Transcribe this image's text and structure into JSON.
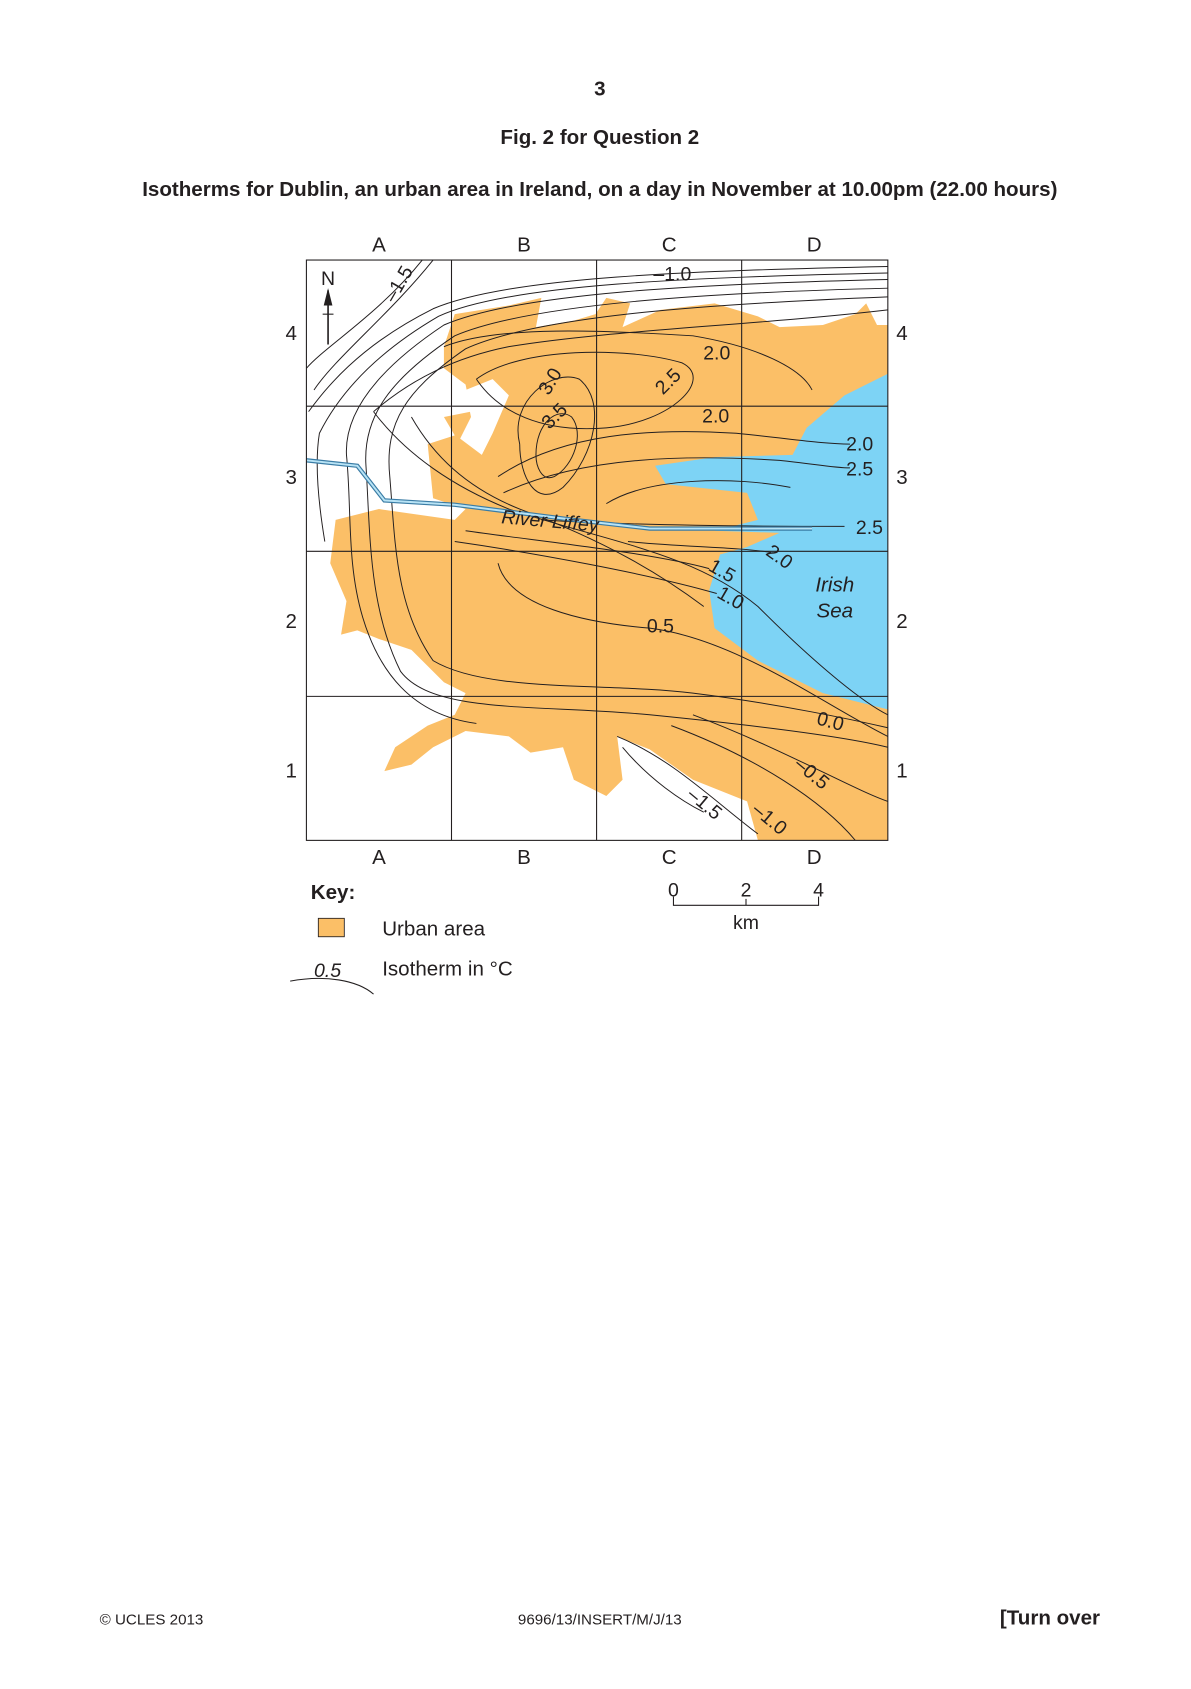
{
  "header": {
    "page_number": "3",
    "figure_title": "Fig. 2 for Question 2",
    "caption": "Isotherms for Dublin, an urban area in Ireland, on a day in November at 10.00pm (22.00 hours)"
  },
  "map": {
    "column_labels": [
      "A",
      "B",
      "C",
      "D"
    ],
    "row_labels": [
      "4",
      "3",
      "2",
      "1"
    ],
    "north": "N",
    "isotherm_labels": [
      "–1.5",
      "–1.0",
      "2.0",
      "3.0",
      "2.5",
      "3.5",
      "2.0",
      "2.0",
      "2.5",
      "2.5",
      "2.0",
      "1.5",
      "1.0",
      "0.5",
      "0.0",
      "–0.5",
      "–1.5",
      "–1.0"
    ],
    "river": "River Liffey",
    "sea": [
      "Irish",
      "Sea"
    ]
  },
  "scale": {
    "ticks": [
      "0",
      "2",
      "4"
    ],
    "unit": "km"
  },
  "key": {
    "title": "Key:",
    "items": [
      "Urban area",
      "Isotherm in °C"
    ],
    "sample_label": "0.5"
  },
  "footer": {
    "copyright": "© UCLES 2013",
    "code": "9696/13/INSERT/M/J/13",
    "turn_over": "[Turn over"
  }
}
